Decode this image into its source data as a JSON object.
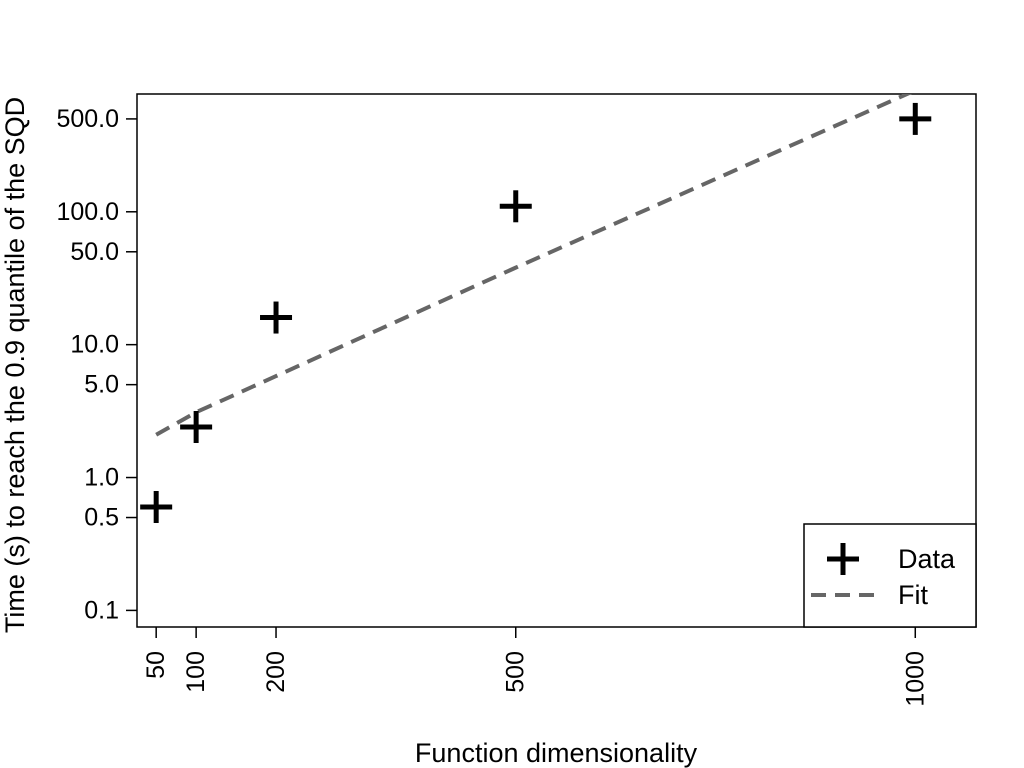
{
  "chart_data": {
    "type": "scatter",
    "title": "",
    "xlabel": "Function dimensionality",
    "ylabel": "Time (s) to reach the 0.9 quantile of the SQD",
    "x_scale": "linear",
    "y_scale": "log",
    "xlim": [
      26,
      1076
    ],
    "ylim": [
      0.075,
      770
    ],
    "x_ticks": [
      50,
      100,
      200,
      500,
      1000
    ],
    "x_tick_labels": [
      "50",
      "100",
      "200",
      "500",
      "1000"
    ],
    "y_ticks": [
      0.1,
      0.5,
      1,
      5,
      10,
      50,
      100,
      500
    ],
    "y_tick_labels": [
      "0.1",
      "0.5",
      "1.0",
      "5.0",
      "10.0",
      "50.0",
      "100.0",
      "500.0"
    ],
    "grid": false,
    "legend_position": "bottom-right",
    "series": [
      {
        "name": "Data",
        "kind": "points",
        "marker": "plus",
        "color": "#000000",
        "x": [
          50,
          100,
          200,
          500,
          1000
        ],
        "y": [
          0.6,
          2.4,
          16,
          110,
          500
        ]
      },
      {
        "name": "Fit",
        "kind": "line",
        "style": "dashed",
        "color": "#666666",
        "x": [
          50,
          100,
          200,
          500,
          1000
        ],
        "y": [
          2.1,
          3.1,
          5.8,
          38,
          820
        ]
      }
    ]
  }
}
